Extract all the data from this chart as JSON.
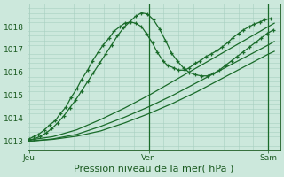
{
  "background_color": "#cce8dc",
  "grid_color": "#a8cfc0",
  "line_color": "#1a6b2a",
  "tick_color": "#1a5a20",
  "title": "Pression niveau de la mer( hPa )",
  "xlabel_ticks": [
    "Jeu",
    "Ven",
    "Sam"
  ],
  "xlabel_tick_positions": [
    0.0,
    1.0,
    2.0
  ],
  "ylim": [
    1012.6,
    1019.0
  ],
  "yticks": [
    1013,
    1014,
    1015,
    1016,
    1017,
    1018
  ],
  "xlim": [
    -0.01,
    2.1
  ],
  "series": [
    {
      "x": [
        0.0,
        0.04,
        0.08,
        0.13,
        0.17,
        0.22,
        0.26,
        0.31,
        0.35,
        0.4,
        0.44,
        0.49,
        0.53,
        0.58,
        0.62,
        0.67,
        0.71,
        0.76,
        0.8,
        0.85,
        0.89,
        0.94,
        0.98,
        1.03,
        1.07,
        1.12,
        1.16,
        1.21,
        1.25,
        1.3,
        1.34,
        1.39,
        1.43,
        1.48,
        1.52,
        1.57,
        1.61,
        1.66,
        1.7,
        1.75,
        1.79,
        1.84,
        1.88,
        1.93,
        1.97,
        2.02
      ],
      "y": [
        1013.1,
        1013.2,
        1013.3,
        1013.5,
        1013.7,
        1013.9,
        1014.2,
        1014.5,
        1014.9,
        1015.3,
        1015.7,
        1016.1,
        1016.5,
        1016.9,
        1017.2,
        1017.5,
        1017.8,
        1018.0,
        1018.15,
        1018.2,
        1018.15,
        1018.0,
        1017.7,
        1017.3,
        1016.9,
        1016.5,
        1016.3,
        1016.2,
        1016.1,
        1016.1,
        1016.2,
        1016.4,
        1016.5,
        1016.7,
        1016.8,
        1016.95,
        1017.1,
        1017.3,
        1017.5,
        1017.7,
        1017.85,
        1018.0,
        1018.1,
        1018.2,
        1018.3,
        1018.35
      ],
      "marker": "+"
    },
    {
      "x": [
        0.0,
        0.04,
        0.09,
        0.14,
        0.19,
        0.24,
        0.29,
        0.34,
        0.39,
        0.44,
        0.49,
        0.54,
        0.59,
        0.64,
        0.69,
        0.74,
        0.79,
        0.84,
        0.89,
        0.94,
        0.99,
        1.04,
        1.09,
        1.14,
        1.19,
        1.24,
        1.29,
        1.34,
        1.39,
        1.44,
        1.49,
        1.54,
        1.59,
        1.64,
        1.69,
        1.74,
        1.79,
        1.84,
        1.89,
        1.94,
        1.99,
        2.04
      ],
      "y": [
        1013.05,
        1013.1,
        1013.2,
        1013.35,
        1013.55,
        1013.8,
        1014.1,
        1014.45,
        1014.8,
        1015.2,
        1015.6,
        1016.0,
        1016.4,
        1016.8,
        1017.2,
        1017.6,
        1017.95,
        1018.2,
        1018.45,
        1018.6,
        1018.55,
        1018.3,
        1017.9,
        1017.4,
        1016.85,
        1016.5,
        1016.2,
        1016.0,
        1015.9,
        1015.85,
        1015.85,
        1015.95,
        1016.1,
        1016.3,
        1016.5,
        1016.7,
        1016.9,
        1017.1,
        1017.3,
        1017.5,
        1017.7,
        1017.85
      ],
      "marker": "+"
    },
    {
      "x": [
        0.0,
        0.2,
        0.4,
        0.6,
        0.8,
        1.0,
        1.2,
        1.4,
        1.6,
        1.8,
        2.0,
        2.05
      ],
      "y": [
        1013.05,
        1013.2,
        1013.5,
        1013.95,
        1014.45,
        1015.0,
        1015.6,
        1016.2,
        1016.8,
        1017.4,
        1018.0,
        1018.15
      ],
      "marker": null
    },
    {
      "x": [
        0.0,
        0.2,
        0.4,
        0.6,
        0.8,
        1.0,
        1.2,
        1.4,
        1.6,
        1.8,
        2.0,
        2.05
      ],
      "y": [
        1013.0,
        1013.1,
        1013.3,
        1013.65,
        1014.05,
        1014.5,
        1015.0,
        1015.55,
        1016.1,
        1016.65,
        1017.2,
        1017.35
      ],
      "marker": null
    },
    {
      "x": [
        0.0,
        0.2,
        0.4,
        0.6,
        0.8,
        1.0,
        1.2,
        1.4,
        1.6,
        1.8,
        2.0,
        2.05
      ],
      "y": [
        1013.0,
        1013.08,
        1013.22,
        1013.45,
        1013.8,
        1014.2,
        1014.65,
        1015.15,
        1015.7,
        1016.25,
        1016.8,
        1016.92
      ],
      "marker": null
    }
  ],
  "vlines": [
    1.0,
    2.0
  ],
  "tick_fontsize": 6.5,
  "label_fontsize": 8
}
